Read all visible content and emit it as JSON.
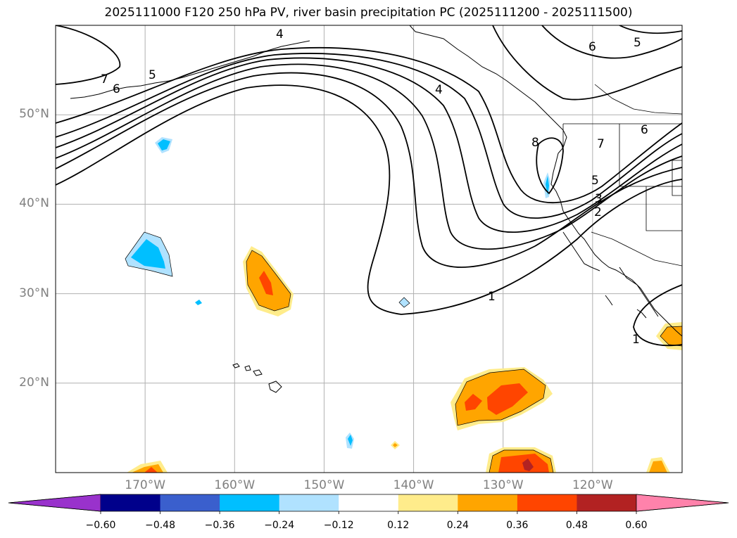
{
  "title": "2025111000 F120 250 hPa PV, river basin precipitation PC (2025111200 - 2025111500)",
  "map": {
    "projection": "PlateCarree",
    "lon_range": [
      -180,
      -110
    ],
    "lat_range": [
      10,
      60
    ],
    "lat_ticks": [
      {
        "value": 50,
        "label": "50°N"
      },
      {
        "value": 40,
        "label": "40°N"
      },
      {
        "value": 30,
        "label": "30°N"
      },
      {
        "value": 20,
        "label": "20°N"
      }
    ],
    "lon_ticks": [
      {
        "value": -170,
        "label": "170°W"
      },
      {
        "value": -160,
        "label": "160°W"
      },
      {
        "value": -150,
        "label": "150°W"
      },
      {
        "value": -140,
        "label": "140°W"
      },
      {
        "value": -130,
        "label": "130°W"
      },
      {
        "value": -120,
        "label": "120°W"
      }
    ],
    "grid": true,
    "pv_contour_labels": [
      "7",
      "6",
      "5",
      "4",
      "4",
      "6",
      "5",
      "1",
      "8",
      "7",
      "6",
      "5",
      "3",
      "2",
      "1"
    ]
  },
  "colorbar": {
    "extend": "both",
    "levels": [
      "−0.60",
      "−0.48",
      "−0.36",
      "−0.24",
      "−0.12",
      "0.12",
      "0.24",
      "0.36",
      "0.48",
      "0.60"
    ],
    "colors": [
      "#9932cc",
      "#00008b",
      "#3a5fcd",
      "#00bfff",
      "#b0e2ff",
      "#ffffff",
      "#ffec8b",
      "#ffa500",
      "#ff4500",
      "#b22222",
      "#ff82ab"
    ]
  }
}
